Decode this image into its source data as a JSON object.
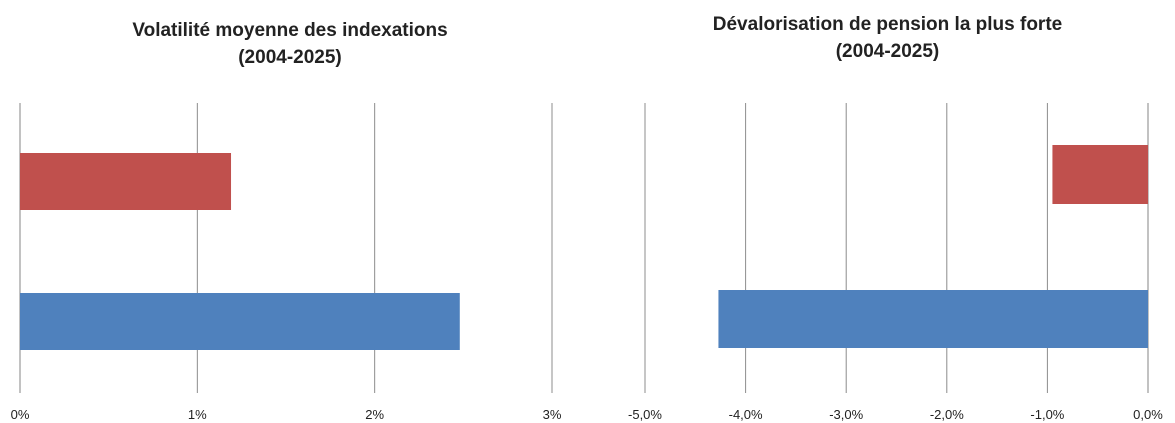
{
  "chart_data": [
    {
      "type": "bar",
      "orientation": "horizontal",
      "title": "Volatilité moyenne des indexations",
      "subtitle": "(2004-2025)",
      "xlim": [
        0,
        0.03
      ],
      "xticks": [
        "0%",
        "1%",
        "2%",
        "3%"
      ],
      "grid": true,
      "legend": "none",
      "series": [
        {
          "color": "#c0504d",
          "values": [
            0.0119
          ]
        },
        {
          "color": "#4f81bd",
          "values": [
            0.0248
          ]
        }
      ]
    },
    {
      "type": "bar",
      "orientation": "horizontal",
      "title": "Dévalorisation de pension la plus forte",
      "subtitle": "(2004-2025)",
      "xlim": [
        -0.05,
        0.0
      ],
      "xticks": [
        "-5,0%",
        "-4,0%",
        "-3,0%",
        "-2,0%",
        "-1,0%",
        "0,0%"
      ],
      "grid": true,
      "legend": "none",
      "series": [
        {
          "color": "#c0504d",
          "values": [
            -0.0095
          ]
        },
        {
          "color": "#4f81bd",
          "values": [
            -0.0427
          ]
        }
      ]
    }
  ]
}
